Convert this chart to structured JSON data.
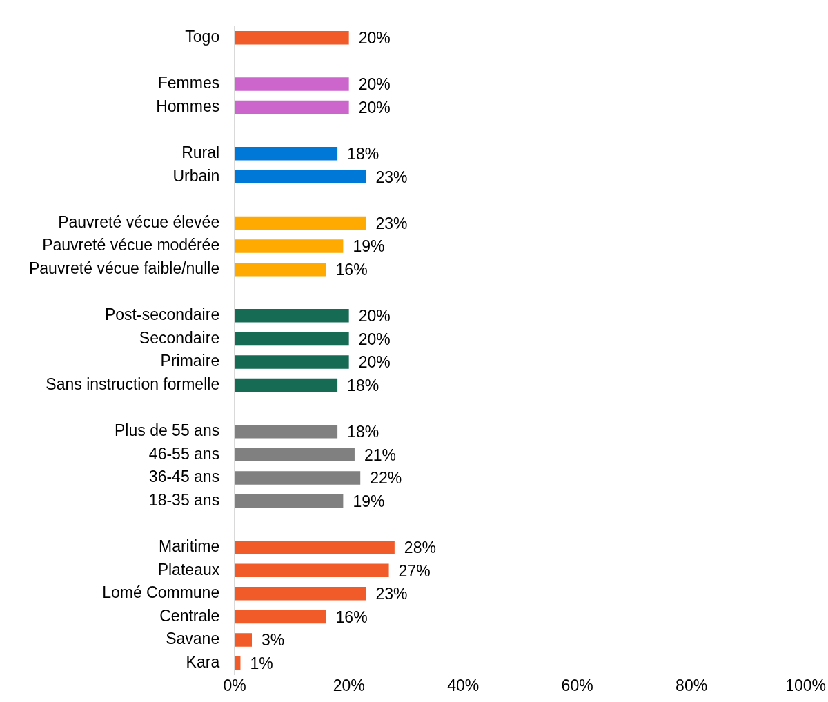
{
  "chart_data": {
    "type": "bar",
    "orientation": "horizontal",
    "categories": [
      "Togo",
      null,
      "Femmes",
      "Hommes",
      null,
      "Rural",
      "Urbain",
      null,
      "Pauvreté vécue élevée",
      "Pauvreté vécue modérée",
      "Pauvreté vécue faible/nulle",
      null,
      "Post-secondaire",
      "Secondaire",
      "Primaire",
      "Sans instruction formelle",
      null,
      "Plus de 55 ans",
      "46-55 ans",
      "36-45 ans",
      "18-35 ans",
      null,
      "Maritime",
      "Plateaux",
      "Lomé Commune",
      "Centrale",
      "Savane",
      "Kara"
    ],
    "values": [
      20,
      null,
      20,
      20,
      null,
      18,
      23,
      null,
      23,
      19,
      16,
      null,
      20,
      20,
      20,
      18,
      null,
      18,
      21,
      22,
      19,
      null,
      28,
      27,
      23,
      16,
      3,
      1
    ],
    "value_labels": [
      "20%",
      null,
      "20%",
      "20%",
      null,
      "18%",
      "23%",
      null,
      "23%",
      "19%",
      "16%",
      null,
      "20%",
      "20%",
      "20%",
      "18%",
      null,
      "18%",
      "21%",
      "22%",
      "19%",
      null,
      "28%",
      "27%",
      "23%",
      "16%",
      "3%",
      "1%"
    ],
    "colors": [
      "#f15a29",
      null,
      "#cc66cc",
      "#cc66cc",
      null,
      "#0078d7",
      "#0078d7",
      null,
      "#ffaa00",
      "#ffaa00",
      "#ffaa00",
      null,
      "#156b54",
      "#156b54",
      "#156b54",
      "#156b54",
      null,
      "#808080",
      "#808080",
      "#808080",
      "#808080",
      null,
      "#f15a29",
      "#f15a29",
      "#f15a29",
      "#f15a29",
      "#f15a29",
      "#f15a29"
    ],
    "xlim": [
      0,
      100
    ],
    "xticks": [
      {
        "value": 0,
        "label": "0%"
      },
      {
        "value": 20,
        "label": "20%"
      },
      {
        "value": 40,
        "label": "40%"
      },
      {
        "value": 60,
        "label": "60%"
      },
      {
        "value": 80,
        "label": "80%"
      },
      {
        "value": 100,
        "label": "100%"
      }
    ],
    "grid": false,
    "legend": false
  }
}
